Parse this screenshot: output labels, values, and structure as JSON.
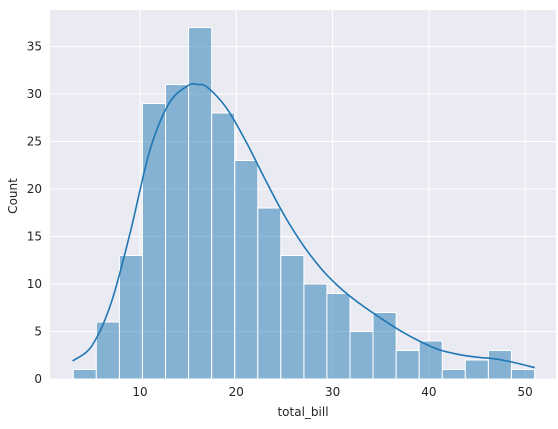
{
  "chart_data": {
    "type": "bar",
    "title": "",
    "xlabel": "total_bill",
    "ylabel": "Count",
    "xlim": [
      0.65,
      53.2
    ],
    "ylim": [
      0,
      38.85
    ],
    "grid": true,
    "colors": {
      "background": "#eaeaf2",
      "grid": "#ffffff",
      "bar_fill": "#1f77b4",
      "bar_fill_opacity": 0.5,
      "bar_edge": "#ffffff",
      "kde_line": "#1f77b4"
    },
    "x_ticks": [
      10,
      20,
      30,
      40,
      50
    ],
    "x_tick_labels": [
      "10",
      "20",
      "30",
      "40",
      "50"
    ],
    "y_ticks": [
      0,
      5,
      10,
      15,
      20,
      25,
      30,
      35
    ],
    "y_tick_labels": [
      "0",
      "5",
      "10",
      "15",
      "20",
      "25",
      "30",
      "35"
    ],
    "bin_edges": [
      3.07,
      5.46,
      7.86,
      10.25,
      12.65,
      15.04,
      17.44,
      19.83,
      22.23,
      24.62,
      27.02,
      29.41,
      31.81,
      34.2,
      36.6,
      38.99,
      41.39,
      43.78,
      46.18,
      48.57,
      50.97
    ],
    "counts": [
      1,
      6,
      13,
      29,
      31,
      37,
      28,
      23,
      18,
      13,
      10,
      9,
      5,
      7,
      3,
      4,
      1,
      2,
      3,
      1
    ],
    "kde": {
      "x": [
        3,
        5,
        7,
        9,
        11,
        13,
        15,
        16,
        17,
        19,
        21,
        23,
        25,
        27,
        29,
        31,
        33,
        35,
        37,
        39,
        41,
        43,
        45,
        47,
        49,
        51
      ],
      "y": [
        1.9,
        3.5,
        8.0,
        15.5,
        24.0,
        29.0,
        30.9,
        31.0,
        30.7,
        28.5,
        25.0,
        21.0,
        17.2,
        14.0,
        11.4,
        9.4,
        7.8,
        6.4,
        5.1,
        4.0,
        3.1,
        2.6,
        2.3,
        2.1,
        1.7,
        1.2
      ]
    }
  }
}
